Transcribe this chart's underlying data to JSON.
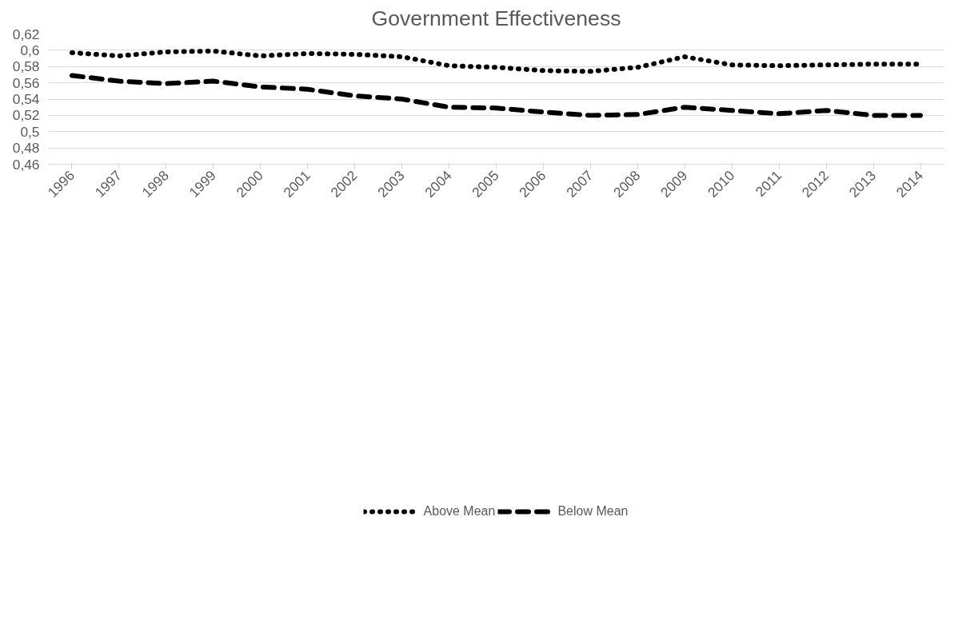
{
  "chart_data": {
    "type": "line",
    "title": "Government Effectiveness",
    "categories": [
      "1996",
      "1997",
      "1998",
      "1999",
      "2000",
      "2001",
      "2002",
      "2003",
      "2004",
      "2005",
      "2006",
      "2007",
      "2008",
      "2009",
      "2010",
      "2011",
      "2012",
      "2013",
      "2014"
    ],
    "series": [
      {
        "name": "Above Mean",
        "color": "#000000",
        "line_style": "dotted",
        "values": [
          0.597,
          0.593,
          0.598,
          0.599,
          0.593,
          0.596,
          0.595,
          0.592,
          0.581,
          0.579,
          0.575,
          0.574,
          0.579,
          0.592,
          0.582,
          0.581,
          0.582,
          0.583,
          0.583
        ]
      },
      {
        "name": "Below Mean",
        "color": "#000000",
        "line_style": "dashed",
        "values": [
          0.569,
          0.562,
          0.559,
          0.562,
          0.555,
          0.552,
          0.544,
          0.54,
          0.53,
          0.529,
          0.524,
          0.52,
          0.521,
          0.53,
          0.526,
          0.522,
          0.526,
          0.52,
          0.52
        ]
      }
    ],
    "ylim": [
      0.46,
      0.62
    ],
    "yticks": [
      {
        "value": 0.46,
        "label": "0,46"
      },
      {
        "value": 0.48,
        "label": "0,48"
      },
      {
        "value": 0.5,
        "label": "0,5"
      },
      {
        "value": 0.52,
        "label": "0,52"
      },
      {
        "value": 0.54,
        "label": "0,54"
      },
      {
        "value": 0.56,
        "label": "0,56"
      },
      {
        "value": 0.58,
        "label": "0,58"
      },
      {
        "value": 0.6,
        "label": "0,6"
      },
      {
        "value": 0.62,
        "label": "0,62"
      }
    ],
    "grid": "y",
    "legend": "bottom",
    "marker": "none"
  }
}
